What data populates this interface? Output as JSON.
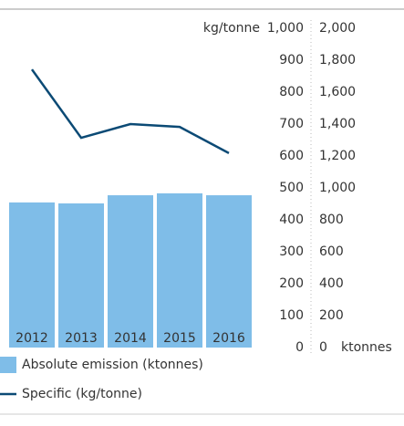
{
  "chart_data": {
    "type": "bar-line",
    "categories": [
      "2012",
      "2013",
      "2014",
      "2015",
      "2016"
    ],
    "series": [
      {
        "name": "Absolute emission (ktonnes)",
        "type": "bar",
        "color": "#7fbde8",
        "axis": "y2",
        "values": [
          909,
          903,
          954,
          966,
          954
        ]
      },
      {
        "name": "Specific (kg/tonne)",
        "type": "line",
        "color": "#0b4a75",
        "values": [
          871,
          657,
          700,
          691,
          609
        ]
      }
    ],
    "ylabel": "kg/tonne",
    "y2label": "ktonnes",
    "ylim": [
      0,
      1000
    ],
    "yticks": [
      0,
      100,
      200,
      300,
      400,
      500,
      600,
      700,
      800,
      900,
      {
        "value": 1000,
        "label": "1,000"
      }
    ],
    "y2lim": [
      0,
      2000
    ],
    "y2ticks": [
      0,
      200,
      400,
      600,
      800,
      {
        "value": 1000,
        "label": "1,000"
      },
      {
        "value": 1200,
        "label": "1,200"
      },
      {
        "value": 1400,
        "label": "1,400"
      },
      {
        "value": 1600,
        "label": "1,600"
      },
      {
        "value": 1800,
        "label": "1,800"
      },
      {
        "value": 2000,
        "label": "2,000"
      }
    ],
    "y2color": "#35ace0"
  }
}
